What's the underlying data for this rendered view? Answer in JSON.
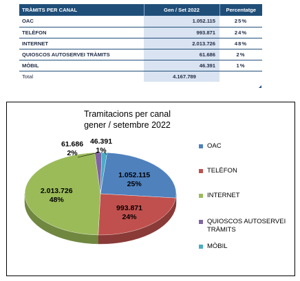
{
  "table": {
    "headers": [
      "TRÀMITS PER CANAL",
      "Gen / Set 2022",
      "Percentatge"
    ],
    "rows": [
      {
        "name": "OAC",
        "value": "1.052.115",
        "pct": "25%"
      },
      {
        "name": "TELÈFON",
        "value": "993.871",
        "pct": "24%"
      },
      {
        "name": "INTERNET",
        "value": "2.013.726",
        "pct": "48%"
      },
      {
        "name": "QUIOSCOS AUTOSERVEI TRÀMITS",
        "value": "61.686",
        "pct": "2%"
      },
      {
        "name": "MÒBIL",
        "value": "46.391",
        "pct": "1%"
      }
    ],
    "total": {
      "label": "Total",
      "value": "4.167.789"
    }
  },
  "chart_data": {
    "type": "pie",
    "title": "Tramitacions per canal\ngener / setembre 2022",
    "categories": [
      "OAC",
      "TELÈFON",
      "INTERNET",
      "QUIOSCOS AUTOSERVEI TRÀMITS",
      "MÒBIL"
    ],
    "values": [
      1052115,
      993871,
      2013726,
      61686,
      46391
    ],
    "value_labels": [
      "1.052.115",
      "993.871",
      "2.013.726",
      "61.686",
      "46.391"
    ],
    "percent_labels": [
      "25%",
      "24%",
      "48%",
      "2%",
      "1%"
    ],
    "colors": [
      "#4f81bd",
      "#c0504d",
      "#9bbb59",
      "#8064a2",
      "#4bacc6"
    ],
    "legend_position": "right",
    "style": "3d"
  }
}
